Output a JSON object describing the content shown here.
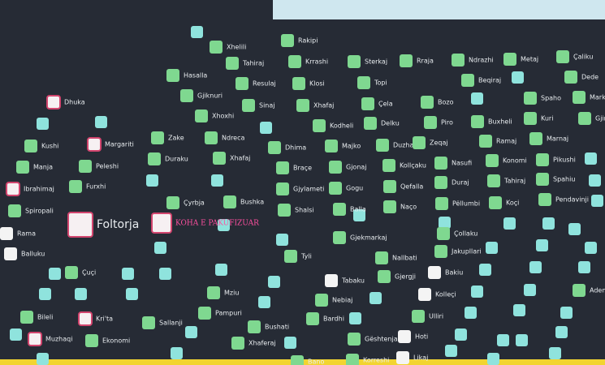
{
  "seats": [
    {
      "name": "Dhuka"
    },
    {
      "name": "Kushi"
    },
    {
      "name": "Manja"
    },
    {
      "name": "Ibrahimaj"
    },
    {
      "name": "Spiropali"
    },
    {
      "name": "Rama"
    },
    {
      "name": "Balluku"
    },
    {
      "name": "Bileli"
    },
    {
      "name": "Muzhaqi"
    },
    {
      "name": "Margariti"
    },
    {
      "name": "Peleshi"
    },
    {
      "name": "Furxhi"
    },
    {
      "name": "Foltorja"
    },
    {
      "name": "Çuçi"
    },
    {
      "name": "Kri'ta"
    },
    {
      "name": "Ekonomi"
    },
    {
      "name": "Zake"
    },
    {
      "name": "Duraku"
    },
    {
      "name": "Çyrbja"
    },
    {
      "name": "KOHA E PAKUFIZUAR"
    },
    {
      "name": "Sallanji"
    },
    {
      "name": "Xhelili"
    },
    {
      "name": "Tahiraj"
    },
    {
      "name": "Hasalla"
    },
    {
      "name": "Gjiknuri"
    },
    {
      "name": "Xhoxhi"
    },
    {
      "name": "Ndreca"
    },
    {
      "name": "Xhafaj"
    },
    {
      "name": "Bushka"
    },
    {
      "name": "Mziu"
    },
    {
      "name": "Pampuri"
    },
    {
      "name": "Bushati"
    },
    {
      "name": "Xhaferaj"
    },
    {
      "name": "Resulaj"
    },
    {
      "name": "Sinaj"
    },
    {
      "name": "Dhima"
    },
    {
      "name": "Braçe"
    },
    {
      "name": "Gjylameti"
    },
    {
      "name": "Shalsi"
    },
    {
      "name": "Tyli"
    },
    {
      "name": "Bardhi"
    },
    {
      "name": "Bano"
    },
    {
      "name": "Rakipi"
    },
    {
      "name": "Krrashi"
    },
    {
      "name": "Klosi"
    },
    {
      "name": "Xhafaj"
    },
    {
      "name": "Kodheli"
    },
    {
      "name": "Majko"
    },
    {
      "name": "Gjonaj"
    },
    {
      "name": "Gogu"
    },
    {
      "name": "Balla"
    },
    {
      "name": "Gjekmarkaj"
    },
    {
      "name": "Tabaku"
    },
    {
      "name": "Nebiaj"
    },
    {
      "name": "Gështenja"
    },
    {
      "name": "Korreshi"
    },
    {
      "name": "Sterkaj"
    },
    {
      "name": "Topi"
    },
    {
      "name": "Çela"
    },
    {
      "name": "Delku"
    },
    {
      "name": "Duzha"
    },
    {
      "name": "Kollçaku"
    },
    {
      "name": "Qefalla"
    },
    {
      "name": "Naço"
    },
    {
      "name": "Nallbati"
    },
    {
      "name": "Gjergji"
    },
    {
      "name": "Hoti"
    },
    {
      "name": "Likaj"
    },
    {
      "name": "Rraja"
    },
    {
      "name": "Bozo"
    },
    {
      "name": "Piro"
    },
    {
      "name": "Zeqaj"
    },
    {
      "name": "Nasufi"
    },
    {
      "name": "Duraj"
    },
    {
      "name": "Pëllumbi"
    },
    {
      "name": "Çollaku"
    },
    {
      "name": "Jakupllari"
    },
    {
      "name": "Bakiu"
    },
    {
      "name": "Kolleçi"
    },
    {
      "name": "Ulliri"
    },
    {
      "name": "Ndrazhi"
    },
    {
      "name": "Beqiraj"
    },
    {
      "name": "Buxheli"
    },
    {
      "name": "Ramaj"
    },
    {
      "name": "Konomi"
    },
    {
      "name": "Tahiraj"
    },
    {
      "name": "Koçi"
    },
    {
      "name": "Metaj"
    },
    {
      "name": "Spaho"
    },
    {
      "name": "Kuri"
    },
    {
      "name": "Marnaj"
    },
    {
      "name": "Pikushi"
    },
    {
      "name": "Spahiu"
    },
    {
      "name": "Pendavinji"
    },
    {
      "name": "Ademaj"
    },
    {
      "name": "Çaliku"
    },
    {
      "name": "Dede"
    },
    {
      "name": "Markiçi"
    },
    {
      "name": "Gjini"
    }
  ]
}
